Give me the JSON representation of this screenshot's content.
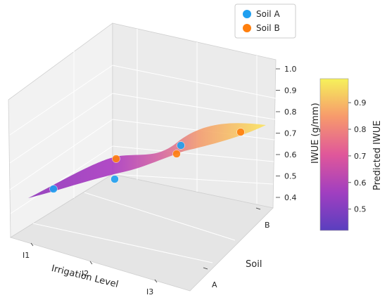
{
  "chart_data": {
    "type": "scatter",
    "subtype": "3d-surface-with-points",
    "x_axis": {
      "label": "Irrigation Level",
      "ticks": [
        "I1",
        "I2",
        "I3"
      ]
    },
    "y_axis": {
      "label": "Soil",
      "ticks": [
        "A",
        "B"
      ]
    },
    "z_axis": {
      "label": "IWUE (g/mm)",
      "ticks": [
        "0.4",
        "0.5",
        "0.6",
        "0.7",
        "0.8",
        "0.9",
        "1.0"
      ],
      "range": [
        0.4,
        1.0
      ]
    },
    "series": [
      {
        "name": "Soil A",
        "color": "#1f9ff0",
        "points": [
          {
            "x": "I1",
            "value": 0.5
          },
          {
            "x": "I2",
            "value": 0.55
          },
          {
            "x": "I3",
            "value": 0.77
          }
        ]
      },
      {
        "name": "Soil B",
        "color": "#ff7f0e",
        "points": [
          {
            "x": "I1",
            "value": 0.43
          },
          {
            "x": "I2",
            "value": 0.62
          },
          {
            "x": "I3",
            "value": 0.92
          }
        ]
      }
    ],
    "surface": {
      "description_colormap": "plasma",
      "label": "Predicted IWUE"
    },
    "colorbar": {
      "label": "Predicted IWUE",
      "ticks": [
        "0.5",
        "0.6",
        "0.7",
        "0.8",
        "0.9"
      ],
      "range": [
        0.42,
        0.99
      ]
    },
    "legend_placement": "top-right",
    "grid": true
  }
}
